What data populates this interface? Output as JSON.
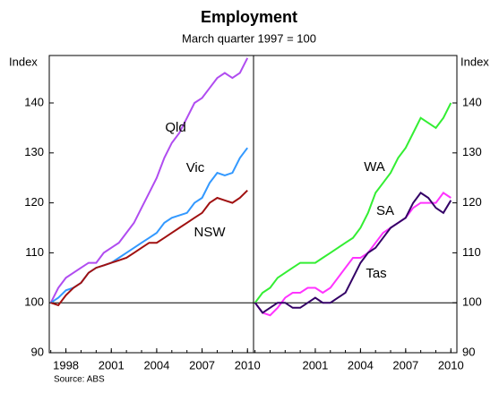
{
  "title": "Employment",
  "subtitle": "March quarter 1997 = 100",
  "source": "Source: ABS",
  "chart_data": [
    {
      "type": "line",
      "ylabel": "Index",
      "x": [
        1997,
        1997.5,
        1998,
        1998.5,
        1999,
        1999.5,
        2000,
        2000.5,
        2001,
        2001.5,
        2002,
        2002.5,
        2003,
        2003.5,
        2004,
        2004.5,
        2005,
        2005.5,
        2006,
        2006.5,
        2007,
        2007.5,
        2008,
        2008.5,
        2009,
        2009.5,
        2010
      ],
      "xlim": [
        1996.9,
        2010.4
      ],
      "xticks": [
        1998,
        2001,
        2004,
        2007,
        2010
      ],
      "ylim": [
        90,
        149.5
      ],
      "yticks": [
        90,
        100,
        110,
        120,
        130,
        140
      ],
      "series": [
        {
          "name": "Qld",
          "color": "#b04cf0",
          "values": [
            100,
            103,
            105,
            106,
            107,
            108,
            108,
            110,
            111,
            112,
            114,
            116,
            119,
            122,
            125,
            129,
            132,
            134,
            137,
            140,
            141,
            143,
            145,
            146,
            145,
            146,
            149
          ]
        },
        {
          "name": "Vic",
          "color": "#3399ff",
          "values": [
            100,
            101,
            102.5,
            103,
            104,
            106,
            107,
            107.5,
            108,
            109,
            110,
            111,
            112,
            113,
            114,
            116,
            117,
            117.5,
            118,
            120,
            121,
            124,
            126,
            125.5,
            126,
            129,
            131
          ]
        },
        {
          "name": "NSW",
          "color": "#a01010",
          "values": [
            100,
            99.5,
            101.5,
            103,
            104,
            106,
            107,
            107.5,
            108,
            108.5,
            109,
            110,
            111,
            112,
            112,
            113,
            114,
            115,
            116,
            117,
            118,
            120,
            121,
            120.5,
            120,
            121,
            122.5
          ]
        }
      ]
    },
    {
      "type": "line",
      "ylabel": "Index",
      "x": [
        1997,
        1997.5,
        1998,
        1998.5,
        1999,
        1999.5,
        2000,
        2000.5,
        2001,
        2001.5,
        2002,
        2002.5,
        2003,
        2003.5,
        2004,
        2004.5,
        2005,
        2005.5,
        2006,
        2006.5,
        2007,
        2007.5,
        2008,
        2008.5,
        2009,
        2009.5,
        2010
      ],
      "xlim": [
        1996.9,
        2010.4
      ],
      "xticks": [
        2001,
        2004,
        2007,
        2010
      ],
      "ylim": [
        90,
        149.5
      ],
      "yticks": [
        90,
        100,
        110,
        120,
        130,
        140
      ],
      "series": [
        {
          "name": "WA",
          "color": "#33ee33",
          "values": [
            100,
            102,
            103,
            105,
            106,
            107,
            108,
            108,
            108,
            109,
            110,
            111,
            112,
            113,
            115,
            118,
            122,
            124,
            126,
            129,
            131,
            134,
            137,
            136,
            135,
            137,
            140
          ]
        },
        {
          "name": "SA",
          "color": "#ff33ff",
          "values": [
            100,
            98,
            97.5,
            99,
            101,
            102,
            102,
            103,
            103,
            102,
            103,
            105,
            107,
            109,
            109,
            110,
            112,
            114,
            115,
            116,
            117,
            119,
            120,
            120,
            120,
            122,
            121
          ]
        },
        {
          "name": "Tas",
          "color": "#330066",
          "values": [
            100,
            98,
            99,
            100,
            100,
            99,
            99,
            100,
            101,
            100,
            100,
            101,
            102,
            105,
            108,
            110,
            111,
            113,
            115,
            116,
            117,
            120,
            122,
            121,
            119,
            118,
            120.5
          ]
        }
      ]
    }
  ]
}
